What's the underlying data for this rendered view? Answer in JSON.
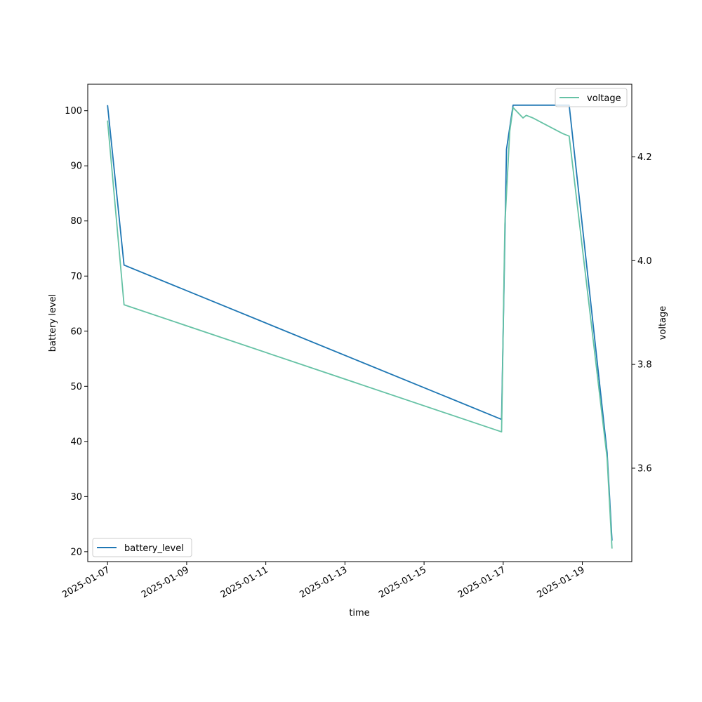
{
  "chart_data": {
    "type": "line",
    "xlabel": "time",
    "ylabel": "battery level",
    "y2label": "voltage",
    "xlim": [
      "2025-01-06 12:00",
      "2025-01-20 06:00"
    ],
    "ylim": [
      18.2,
      104.8
    ],
    "y2lim": [
      3.42,
      4.34
    ],
    "x_ticks": [
      "2025-01-07",
      "2025-01-09",
      "2025-01-11",
      "2025-01-13",
      "2025-01-15",
      "2025-01-17",
      "2025-01-19"
    ],
    "y_ticks": [
      20,
      30,
      40,
      50,
      60,
      70,
      80,
      90,
      100
    ],
    "y2_ticks": [
      3.6,
      3.8,
      4.0,
      4.2
    ],
    "y2_tick_labels": [
      "3.6",
      "3.8",
      "4.0",
      "4.2"
    ],
    "grid": false,
    "series": [
      {
        "name": "battery_level",
        "axis": "left",
        "color": "#1f77b4",
        "legend_loc": "lower-left",
        "points": [
          [
            "2025-01-07 00:00",
            101
          ],
          [
            "2025-01-07 10:00",
            72
          ],
          [
            "2025-01-16 23:00",
            44
          ],
          [
            "2025-01-17 02:00",
            93
          ],
          [
            "2025-01-17 06:00",
            101
          ],
          [
            "2025-01-18 16:00",
            101
          ],
          [
            "2025-01-19 15:00",
            38
          ],
          [
            "2025-01-19 18:00",
            22
          ]
        ]
      },
      {
        "name": "voltage",
        "axis": "right",
        "color": "#66c2a5",
        "legend_loc": "upper-right",
        "points": [
          [
            "2025-01-07 00:00",
            4.27
          ],
          [
            "2025-01-07 10:00",
            3.915
          ],
          [
            "2025-01-16 23:00",
            3.67
          ],
          [
            "2025-01-17 01:00",
            4.07
          ],
          [
            "2025-01-17 04:00",
            4.25
          ],
          [
            "2025-01-17 06:00",
            4.295
          ],
          [
            "2025-01-17 12:00",
            4.275
          ],
          [
            "2025-01-17 14:00",
            4.28
          ],
          [
            "2025-01-17 18:00",
            4.275
          ],
          [
            "2025-01-18 00:00",
            4.265
          ],
          [
            "2025-01-18 06:00",
            4.255
          ],
          [
            "2025-01-18 12:00",
            4.245
          ],
          [
            "2025-01-18 16:00",
            4.24
          ],
          [
            "2025-01-19 15:00",
            3.62
          ],
          [
            "2025-01-19 18:00",
            3.445
          ]
        ]
      }
    ]
  }
}
